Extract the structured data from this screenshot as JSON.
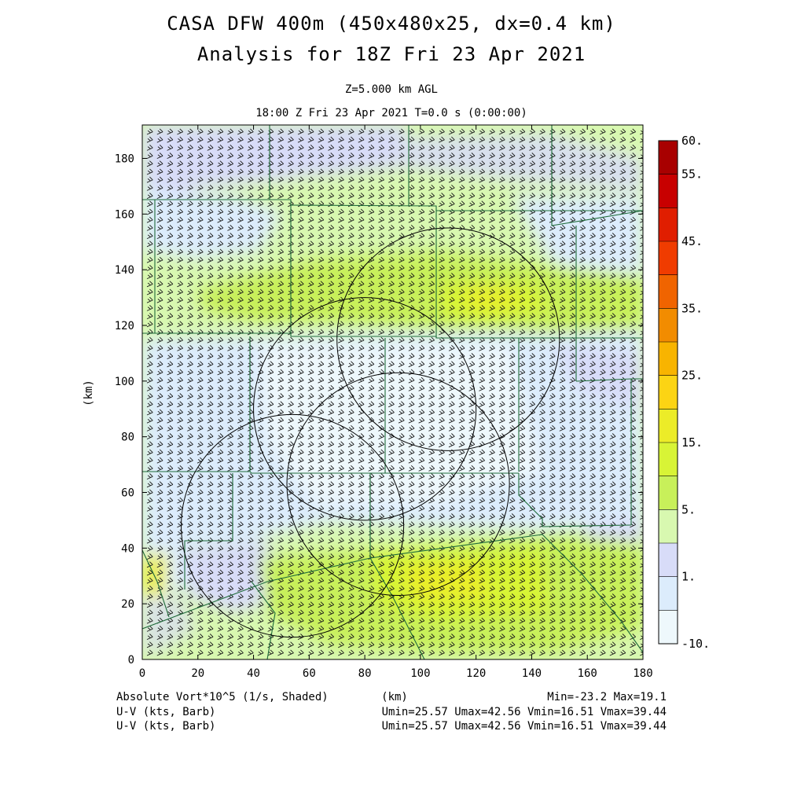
{
  "header": {
    "title_line1": "CASA DFW 400m (450x480x25, dx=0.4 km)",
    "title_line2": "Analysis for 18Z Fri 23 Apr 2021",
    "level": "Z=5.000 km AGL",
    "time": "18:00 Z Fri 23 Apr 2021   T=0.0 s (0:00:00)"
  },
  "axes": {
    "x_label": "(km)",
    "y_label": "(km)",
    "x_ticks": [
      "0",
      "20",
      "40",
      "60",
      "80",
      "100",
      "120",
      "140",
      "160",
      "180"
    ],
    "y_ticks": [
      "0",
      "20",
      "40",
      "60",
      "80",
      "100",
      "120",
      "140",
      "160",
      "180"
    ],
    "x_range": [
      0,
      180
    ],
    "y_range": [
      0,
      192
    ]
  },
  "colorbar": {
    "labels": [
      "60.",
      "55.",
      "45.",
      "35.",
      "25.",
      "15.",
      "5.",
      "1.",
      "-10."
    ],
    "colors": [
      "#a80000",
      "#c80000",
      "#e01e00",
      "#f03c00",
      "#f06400",
      "#f28c00",
      "#f8b400",
      "#fcd414",
      "#ecec28",
      "#d8f436",
      "#c8f05a",
      "#d8f8b0",
      "#d8dcf8",
      "#dcecfc",
      "#eef8fc"
    ]
  },
  "footer": {
    "field": "Absolute Vort*10^5 (1/s, Shaded)",
    "units": "(km)",
    "minmax": "Min=-23.2 Max=19.1",
    "barb1": "U-V (kts, Barb)",
    "barb2": "U-V (kts, Barb)",
    "stats1": "Umin=25.57 Umax=42.56 Vmin=16.51 Vmax=39.44",
    "stats2": "Umin=25.57 Umax=42.56 Vmin=16.51 Vmax=39.44"
  },
  "radar_rings": [
    {
      "center_km": [
        110,
        115
      ],
      "radius_km": 40
    },
    {
      "center_km": [
        80,
        90
      ],
      "radius_km": 40
    },
    {
      "center_km": [
        92,
        63
      ],
      "radius_km": 40
    },
    {
      "center_km": [
        54,
        48
      ],
      "radius_km": 40
    }
  ]
}
